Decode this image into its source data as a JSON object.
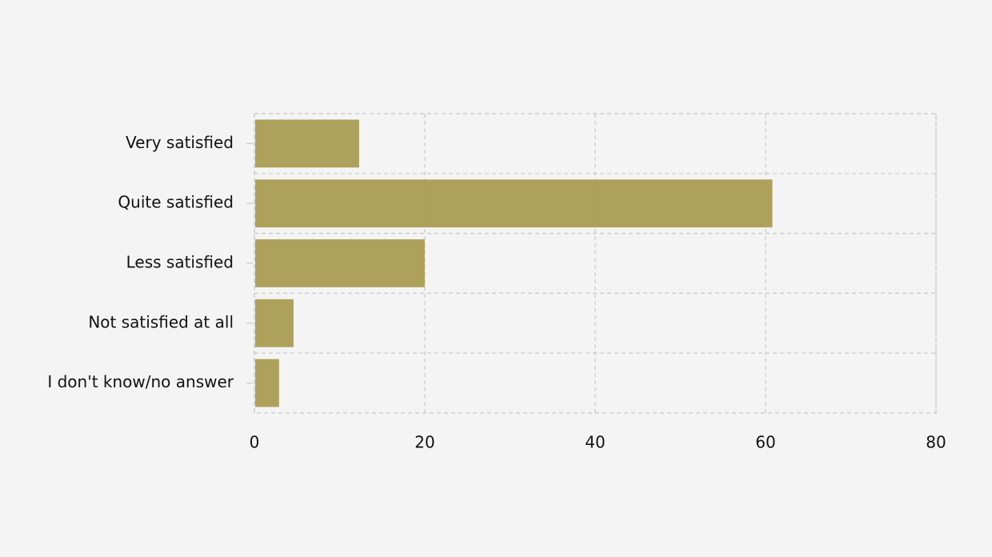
{
  "chart_data": {
    "type": "barh",
    "categories": [
      "Very satisfied",
      "Quite satisfied",
      "Less satisfied",
      "Not satisfied at all",
      "I don't know/no answer"
    ],
    "values": [
      12.2,
      60.7,
      19.9,
      4.5,
      2.8
    ],
    "color": "#aa9c52",
    "xlim": [
      0,
      80
    ],
    "xticks": [
      0,
      20,
      40,
      60,
      80
    ],
    "grid": true
  }
}
